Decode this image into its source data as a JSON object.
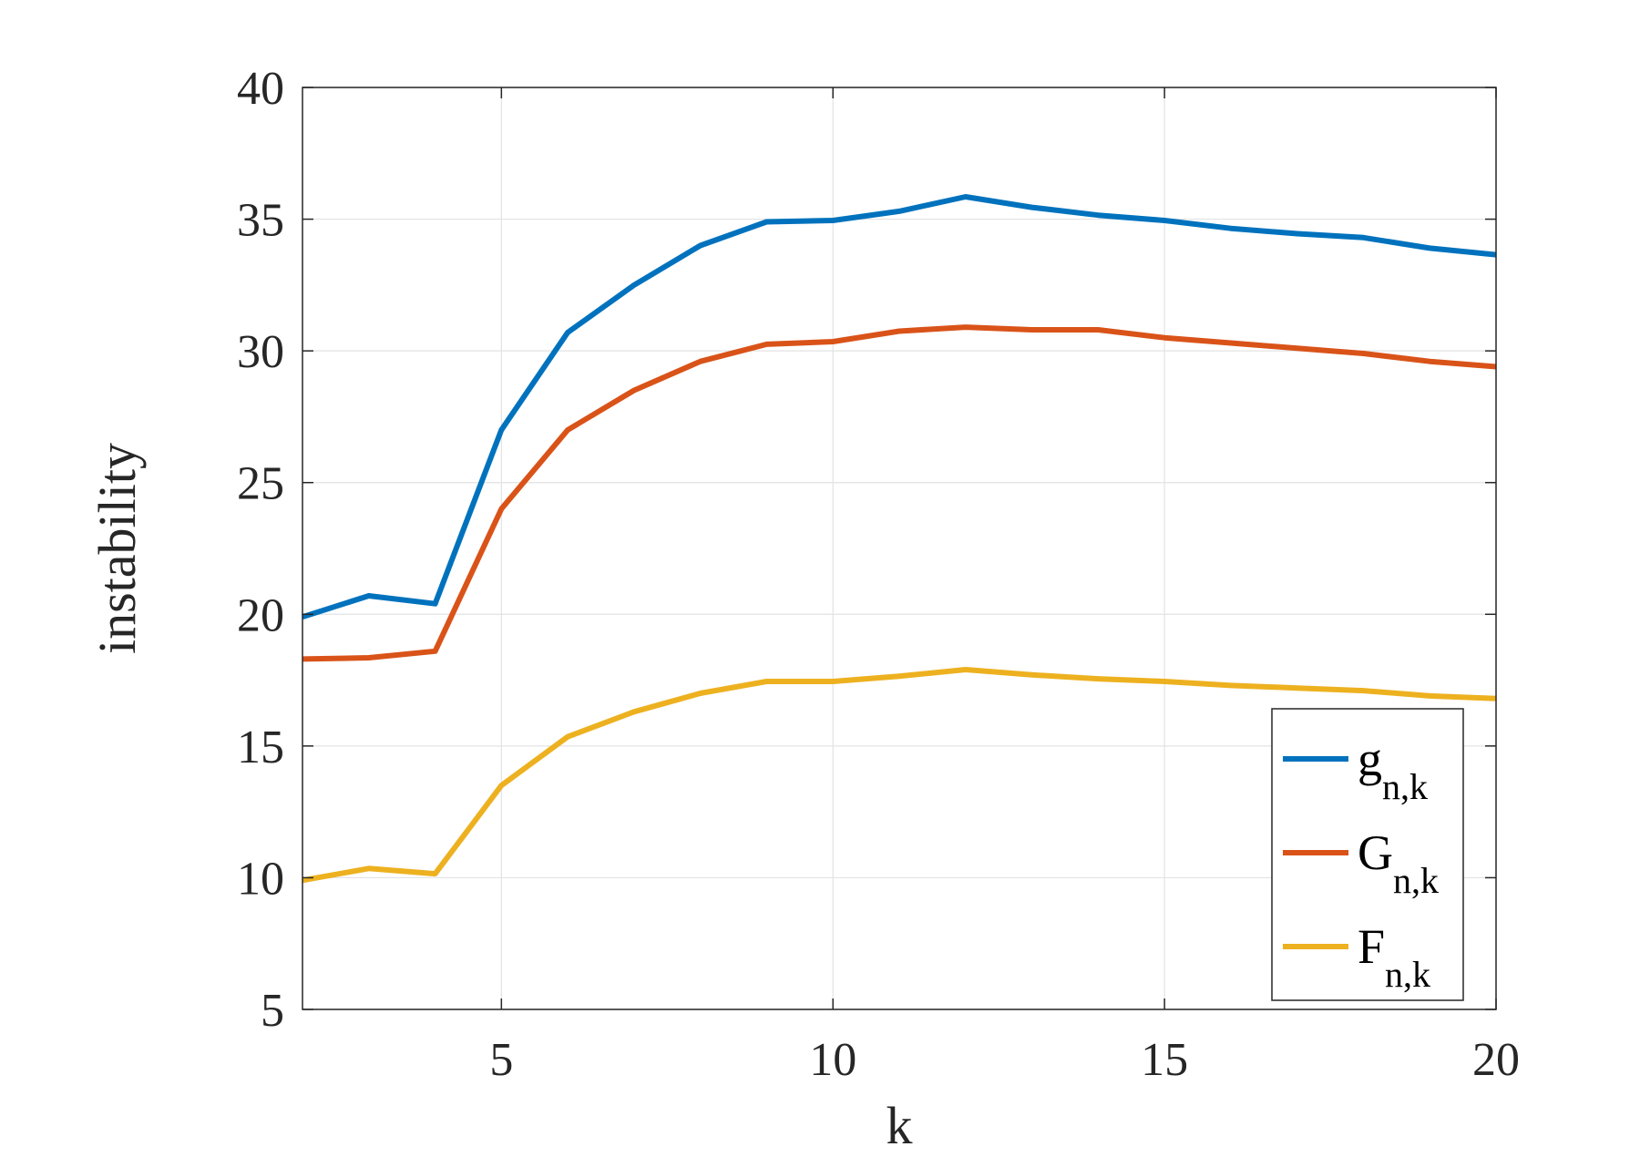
{
  "chart_data": {
    "type": "line",
    "xlabel": "k",
    "ylabel": "instability",
    "xlim": [
      2,
      20
    ],
    "ylim": [
      5,
      40
    ],
    "xticks": [
      5,
      10,
      15,
      20
    ],
    "yticks": [
      5,
      10,
      15,
      20,
      25,
      30,
      35,
      40
    ],
    "grid": true,
    "legend_position": "bottom-right",
    "x": [
      2,
      3,
      4,
      5,
      6,
      7,
      8,
      9,
      10,
      11,
      12,
      13,
      14,
      15,
      16,
      17,
      18,
      19,
      20
    ],
    "series": [
      {
        "name": "g",
        "subscript": "n,k",
        "color": "#0072BD",
        "values": [
          19.9,
          20.7,
          20.4,
          27.0,
          30.7,
          32.5,
          34.0,
          34.9,
          34.95,
          35.3,
          35.85,
          35.45,
          35.15,
          34.95,
          34.65,
          34.45,
          34.3,
          33.9,
          33.65
        ]
      },
      {
        "name": "G",
        "subscript": "n,k",
        "color": "#D95319",
        "values": [
          18.3,
          18.35,
          18.6,
          24.0,
          27.0,
          28.5,
          29.6,
          30.25,
          30.35,
          30.75,
          30.9,
          30.8,
          30.8,
          30.5,
          30.3,
          30.1,
          29.9,
          29.6,
          29.4
        ]
      },
      {
        "name": "F",
        "subscript": "n,k",
        "color": "#EDB120",
        "values": [
          9.9,
          10.35,
          10.15,
          13.5,
          15.35,
          16.3,
          17.0,
          17.45,
          17.45,
          17.65,
          17.9,
          17.7,
          17.55,
          17.45,
          17.3,
          17.2,
          17.1,
          16.9,
          16.8
        ]
      }
    ]
  }
}
